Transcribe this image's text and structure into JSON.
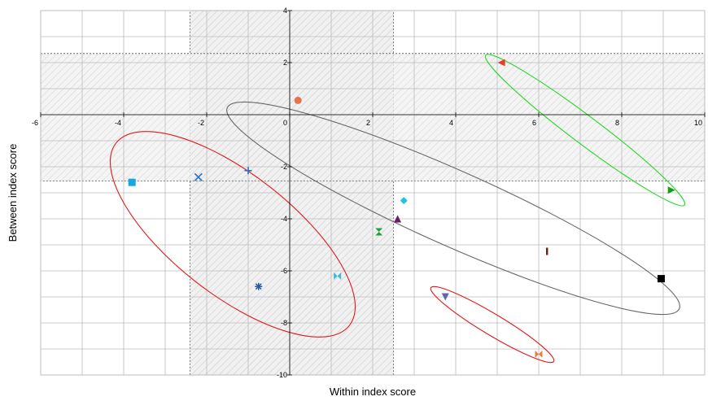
{
  "chart_data": {
    "type": "scatter",
    "x_label": "Within index score",
    "y_label": "Between index score",
    "xlim": [
      -6,
      10
    ],
    "ylim": [
      -10,
      4
    ],
    "xticks": [
      -6,
      -4,
      -2,
      0,
      2,
      4,
      6,
      8,
      10
    ],
    "yticks": [
      4,
      2,
      -2,
      -4,
      -6,
      -8,
      -10
    ],
    "grid": true,
    "shaded_x_range": [
      -2.4,
      2.5
    ],
    "shaded_y_range": [
      -2.55,
      2.35
    ],
    "series": [
      {
        "marker": "circle",
        "color": "#e8734a",
        "x": [
          0.2
        ],
        "values": [
          0.55
        ]
      },
      {
        "marker": "triangle-left",
        "color": "#e0402a",
        "x": [
          5.1
        ],
        "values": [
          2.0
        ]
      },
      {
        "marker": "triangle-right",
        "color": "#1a9a1a",
        "x": [
          9.2
        ],
        "values": [
          -2.9
        ]
      },
      {
        "marker": "square",
        "color": "#1aa7e0",
        "x": [
          -3.8
        ],
        "values": [
          -2.6
        ]
      },
      {
        "marker": "x",
        "color": "#2a6fc9",
        "x": [
          -2.2
        ],
        "values": [
          -2.4
        ]
      },
      {
        "marker": "plus",
        "color": "#2a6fc9",
        "x": [
          -1.0
        ],
        "values": [
          -2.15
        ]
      },
      {
        "marker": "diamond",
        "color": "#22c4e0",
        "x": [
          2.75
        ],
        "values": [
          -3.3
        ]
      },
      {
        "marker": "triangle-up",
        "color": "#6a1a6a",
        "x": [
          2.6
        ],
        "values": [
          -4.0
        ]
      },
      {
        "marker": "hourglass",
        "color": "#22a03a",
        "x": [
          2.15
        ],
        "values": [
          -4.5
        ]
      },
      {
        "marker": "bar",
        "color": "#7a1a1a",
        "x": [
          6.2
        ],
        "values": [
          -5.25
        ]
      },
      {
        "marker": "square",
        "color": "#000000",
        "x": [
          8.95
        ],
        "values": [
          -6.3
        ]
      },
      {
        "marker": "star",
        "color": "#2a5aa0",
        "x": [
          -0.75
        ],
        "values": [
          -6.6
        ]
      },
      {
        "marker": "bowtie",
        "color": "#3ab8e8",
        "x": [
          1.15
        ],
        "values": [
          -6.2
        ]
      },
      {
        "marker": "triangle-down",
        "color": "#5a6aa8",
        "x": [
          3.75
        ],
        "values": [
          -7.0
        ]
      },
      {
        "marker": "bowtie",
        "color": "#f07a3a",
        "x": [
          6.0
        ],
        "values": [
          -9.2
        ]
      }
    ]
  }
}
